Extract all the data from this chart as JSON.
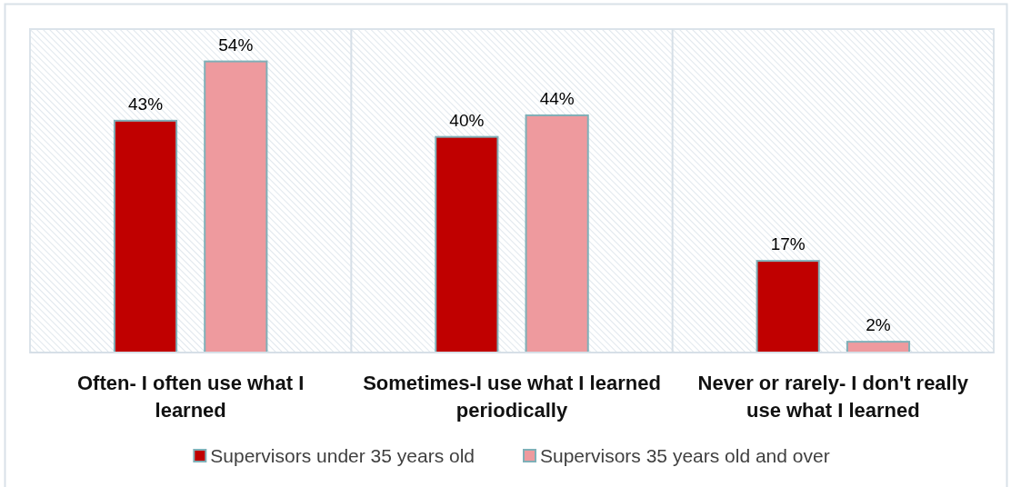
{
  "chart_data": {
    "type": "bar",
    "categories": [
      "Often- I often use what I learned",
      "Sometimes-I use what I learned periodically",
      "Never or rarely- I don't really use what I learned"
    ],
    "series": [
      {
        "name": "Supervisors under 35 years old",
        "color": "#c00000",
        "values": [
          43,
          40,
          17
        ],
        "value_labels": [
          "43%",
          "40%",
          "17%"
        ]
      },
      {
        "name": "Supervisors 35 years old and over",
        "color": "#ee9a9e",
        "values": [
          54,
          44,
          2
        ],
        "value_labels": [
          "54%",
          "44%",
          "2%"
        ]
      }
    ],
    "grid": "x",
    "legend": "bottom"
  }
}
